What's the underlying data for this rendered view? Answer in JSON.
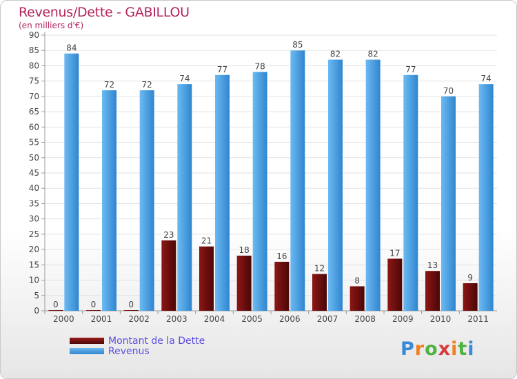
{
  "header": {
    "title": "Revenus/Dette - GABILLOU",
    "subtitle": "(en milliers d'€)"
  },
  "legend": {
    "debt_label": "Montant de la Dette",
    "revenue_label": "Revenus"
  },
  "logo": {
    "letters": [
      "P",
      "r",
      "o",
      "x",
      "i",
      "t",
      "i"
    ],
    "colors": [
      "#3a8ad8",
      "#f07f1e",
      "#4fb340",
      "#d63a3a",
      "#f07f1e",
      "#4fb340",
      "#3a8ad8"
    ]
  },
  "colors": {
    "debt": "#6b0f0f",
    "revenue": "#4a9ee0",
    "title": "#b3245e",
    "legend_text": "#5a4de0"
  },
  "chart_data": {
    "type": "bar",
    "categories": [
      "2000",
      "2001",
      "2002",
      "2003",
      "2004",
      "2005",
      "2006",
      "2007",
      "2008",
      "2009",
      "2010",
      "2011"
    ],
    "series": [
      {
        "name": "Montant de la Dette",
        "values": [
          0,
          0,
          0,
          23,
          21,
          18,
          16,
          12,
          8,
          17,
          13,
          9
        ]
      },
      {
        "name": "Revenus",
        "values": [
          84,
          72,
          72,
          74,
          77,
          78,
          85,
          82,
          82,
          77,
          70,
          74
        ]
      }
    ],
    "yticks": [
      "0",
      "5",
      "10",
      "15",
      "20",
      "25",
      "30",
      "35",
      "40",
      "45",
      "50",
      "55",
      "60",
      "65",
      "70",
      "75",
      "80",
      "85",
      "90"
    ],
    "ylim": [
      0,
      90
    ],
    "grid": true,
    "legend_position": "bottom-left"
  }
}
